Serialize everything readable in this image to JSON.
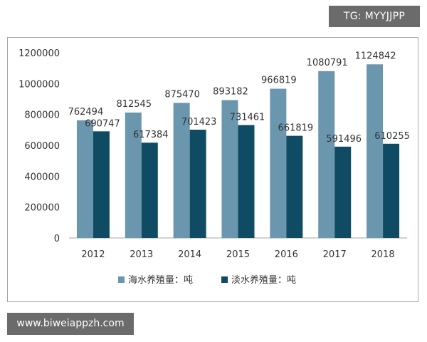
{
  "watermarks": {
    "top": "TG: MYYJJPP",
    "bottom": "www.biweiappzh.com"
  },
  "colors": {
    "series1": "#6b97ae",
    "series2": "#0f4c63",
    "axis": "#a6a6a6",
    "text": "#333333"
  },
  "chart_data": {
    "type": "bar",
    "categories": [
      "2012",
      "2013",
      "2014",
      "2015",
      "2016",
      "2017",
      "2018"
    ],
    "series": [
      {
        "name": "海水养殖量：吨",
        "values": [
          762494,
          812545,
          875470,
          893182,
          966819,
          1080791,
          1124842
        ]
      },
      {
        "name": "淡水养殖量：吨",
        "values": [
          690747,
          617384,
          701423,
          731461,
          661819,
          591496,
          610255
        ]
      }
    ],
    "data_labels": [
      [
        "762494",
        "812545",
        "875470",
        "893182",
        "966819",
        "1080791",
        "1124842"
      ],
      [
        "690747",
        "617384",
        "701423",
        "731461",
        "661819",
        "591496",
        "610255"
      ]
    ],
    "yticks": [
      "0",
      "200000",
      "400000",
      "600000",
      "800000",
      "1000000",
      "1200000"
    ],
    "ylim": [
      0,
      1200000
    ],
    "title": "",
    "xlabel": "",
    "ylabel": "",
    "grid": false,
    "legend_position": "bottom"
  }
}
